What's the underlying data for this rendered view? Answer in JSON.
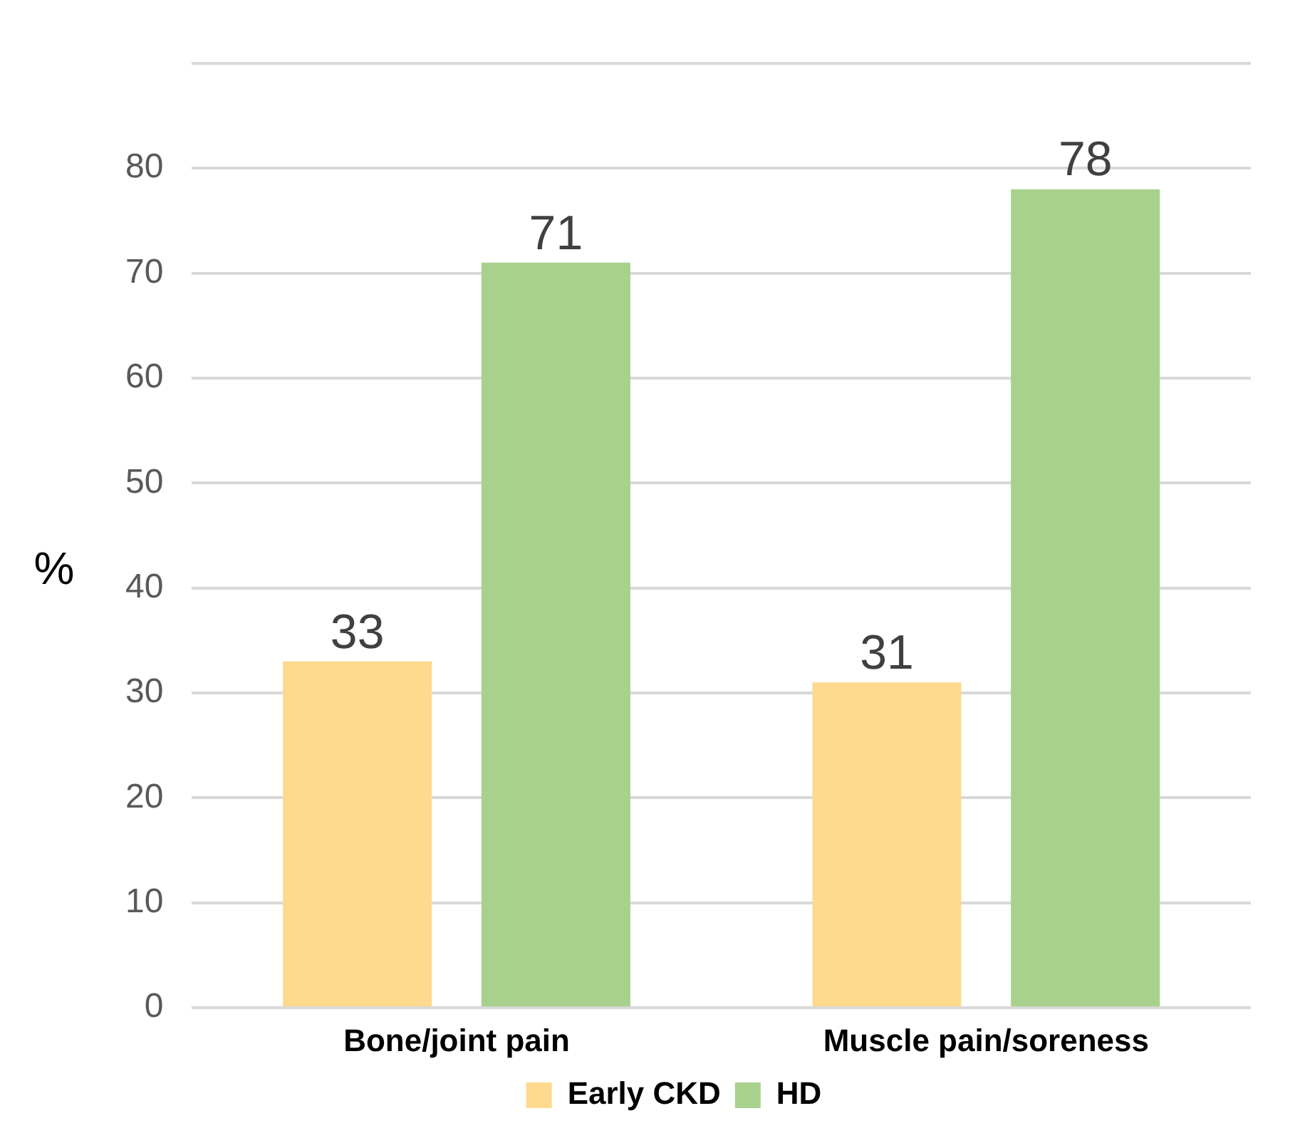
{
  "chart_data": {
    "type": "bar",
    "ylabel": "%",
    "categories": [
      "Bone/joint pain",
      "Muscle pain/soreness"
    ],
    "series": [
      {
        "name": "Early CKD",
        "color": "#fed98e",
        "values": [
          33,
          31
        ]
      },
      {
        "name": "HD",
        "color": "#a9d18e",
        "values": [
          71,
          78
        ]
      }
    ],
    "ylim": [
      0,
      90
    ],
    "yticks": [
      0,
      10,
      20,
      30,
      40,
      50,
      60,
      70,
      80,
      {
        "value": 90,
        "label": null
      }
    ],
    "grid": "y",
    "legend": "bottom",
    "data_labels": true
  }
}
